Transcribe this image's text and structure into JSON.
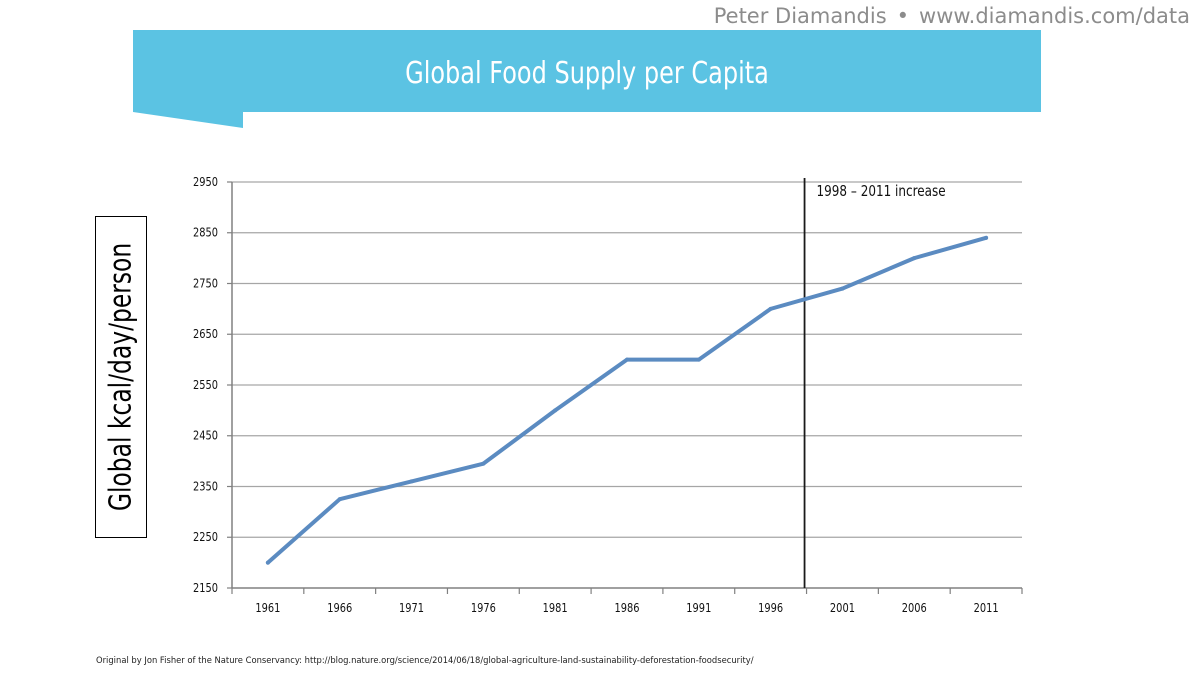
{
  "header": {
    "author": "Peter Diamandis",
    "separator": "•",
    "url": "www.diamandis.com/data"
  },
  "banner": {
    "title": "Global Food Supply per Capita",
    "color": "#5bc3e3"
  },
  "chart_data": {
    "type": "line",
    "title": "Global Food Supply per Capita",
    "xlabel": "",
    "ylabel": "Global kcal/day/person",
    "categories": [
      "1961",
      "1966",
      "1971",
      "1976",
      "1981",
      "1986",
      "1991",
      "1996",
      "2001",
      "2006",
      "2011"
    ],
    "series": [
      {
        "values": [
          2200,
          2325,
          2360,
          2395,
          2500,
          2600,
          2600,
          2700,
          2740,
          2800,
          2840
        ],
        "color": "#5b8bc1"
      }
    ],
    "ylim": [
      2150,
      2950
    ],
    "yticks": [
      2150,
      2250,
      2350,
      2450,
      2550,
      2650,
      2750,
      2850,
      2950
    ],
    "grid": true,
    "marker_line": {
      "position": "between 1996 and 2001",
      "label": "1998 – 2011 increase"
    }
  },
  "footer": {
    "source": "Original by Jon Fisher of the Nature Conservancy: http://blog.nature.org/science/2014/06/18/global-agriculture-land-sustainability-deforestation-foodsecurity/"
  }
}
